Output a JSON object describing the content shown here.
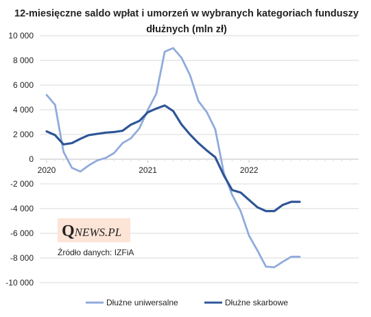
{
  "chart_data": {
    "type": "line",
    "title_lines": [
      "12-miesięczne saldo wpłat i umorzeń w wybranych kategoriach funduszy",
      "dłużnych (mln zł)"
    ],
    "ylim": [
      -10000,
      10000
    ],
    "yticks": [
      10000,
      8000,
      6000,
      4000,
      2000,
      0,
      -2000,
      -4000,
      -6000,
      -8000,
      -10000
    ],
    "ytick_labels": [
      "10 000",
      "8 000",
      "6 000",
      "4 000",
      "2 000",
      "0",
      "-2 000",
      "-4 000",
      "-6 000",
      "-8 000",
      "-10 000"
    ],
    "xlim": [
      0,
      36
    ],
    "xticks": [
      0,
      12,
      24
    ],
    "xtick_labels": [
      "2020",
      "2021",
      "2022"
    ],
    "grid": "horizontal",
    "legend_position": "bottom",
    "series": [
      {
        "name": "Dłużne uniwersalne",
        "color": "#8faadc",
        "x": [
          0,
          1,
          2,
          3,
          4,
          5,
          6,
          7,
          8,
          9,
          10,
          11,
          12,
          13,
          14,
          15,
          16,
          17,
          18,
          19,
          20,
          21,
          22,
          23,
          24,
          25,
          26,
          27,
          28,
          29,
          30
        ],
        "values": [
          5200,
          4400,
          600,
          -700,
          -1000,
          -500,
          -100,
          100,
          500,
          1300,
          1700,
          2500,
          4000,
          5300,
          8700,
          9000,
          8200,
          6800,
          4700,
          3800,
          2400,
          -1100,
          -2900,
          -4200,
          -6200,
          -7400,
          -8700,
          -8750,
          -8300,
          -7900,
          -7900
        ]
      },
      {
        "name": "Dłużne skarbowe",
        "color": "#2f5597",
        "x": [
          0,
          1,
          2,
          3,
          4,
          5,
          6,
          7,
          8,
          9,
          10,
          11,
          12,
          13,
          14,
          15,
          16,
          17,
          18,
          19,
          20,
          21,
          22,
          23,
          24,
          25,
          26,
          27,
          28,
          29,
          30
        ],
        "values": [
          2250,
          1950,
          1200,
          1300,
          1650,
          1950,
          2050,
          2150,
          2200,
          2300,
          2800,
          3100,
          3800,
          4100,
          4350,
          3900,
          2800,
          2000,
          1300,
          700,
          150,
          -1300,
          -2500,
          -2700,
          -3300,
          -3900,
          -4200,
          -4200,
          -3700,
          -3450,
          -3450
        ]
      }
    ],
    "annotation": "Źródło danych: IZFiA"
  },
  "logo": {
    "initial": "Q",
    "rest": "NEWS.PL",
    "bg_color": "#fce4d6"
  }
}
